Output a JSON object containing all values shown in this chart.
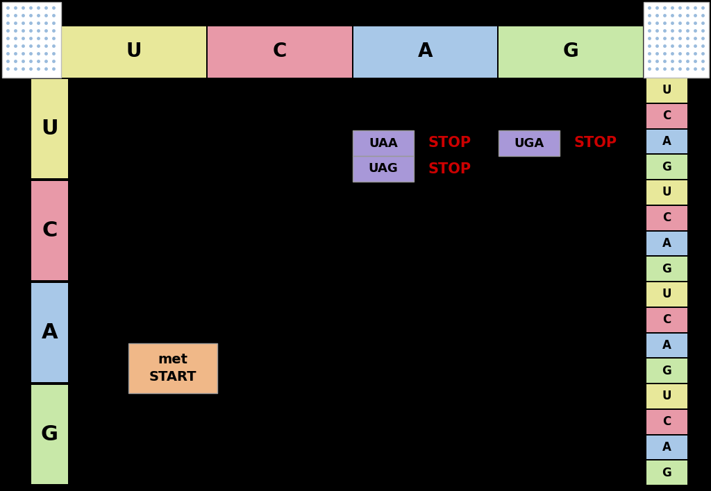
{
  "background_color": "#000000",
  "top_labels": [
    "U",
    "C",
    "A",
    "G"
  ],
  "top_colors": [
    "#e8e89a",
    "#e899a8",
    "#a8c8e8",
    "#c8e8a8"
  ],
  "left_labels": [
    "U",
    "C",
    "A",
    "G"
  ],
  "left_colors": [
    "#e8e89a",
    "#e899a8",
    "#a8c8e8",
    "#c8e8a8"
  ],
  "right_labels": [
    "U",
    "C",
    "A",
    "G",
    "U",
    "C",
    "A",
    "G",
    "U",
    "C",
    "A",
    "G",
    "U",
    "C",
    "A",
    "G"
  ],
  "right_colors": [
    "#e8e89a",
    "#e899a8",
    "#a8c8e8",
    "#c8e8a8",
    "#e8e89a",
    "#e899a8",
    "#a8c8e8",
    "#c8e8a8",
    "#e8e89a",
    "#e899a8",
    "#a8c8e8",
    "#c8e8a8",
    "#e8e89a",
    "#e899a8",
    "#a8c8e8",
    "#c8e8a8"
  ],
  "stop_codon_boxes": [
    {
      "label": "UAA",
      "color": "#a898d8"
    },
    {
      "label": "UAG",
      "color": "#a898d8"
    },
    {
      "label": "UGA",
      "color": "#a898d8"
    }
  ],
  "stop_text_color": "#cc0000",
  "start_box_color": "#f0b888",
  "figsize": [
    10.24,
    7.08
  ],
  "dpi": 100
}
